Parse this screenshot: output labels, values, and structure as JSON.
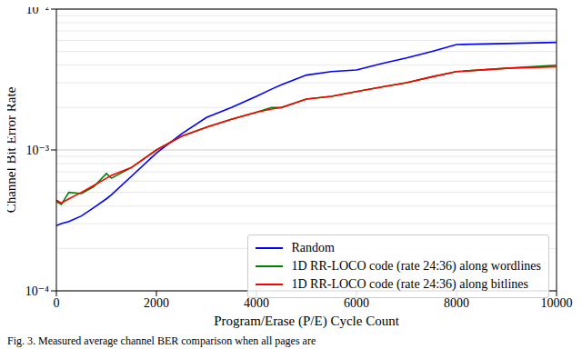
{
  "chart_data": {
    "type": "line",
    "xlabel": "Program/Erase (P/E) Cycle Count",
    "ylabel": "Channel Bit Error Rate",
    "annotations": [
      "Fig. 3.   Measured average channel BER comparison when all pages are"
    ],
    "log": "y",
    "grid": true,
    "legend": "lower right",
    "xlim": [
      0,
      10000
    ],
    "xticks": [
      0,
      2000,
      4000,
      6000,
      8000,
      10000
    ],
    "ylim": [
      0.0001,
      0.01
    ],
    "yticks": [
      {
        "value": 0.0001,
        "label": "10⁻⁴"
      },
      {
        "value": 0.001,
        "label": "10⁻³"
      },
      {
        "value": 0.01,
        "label": "10⁻²"
      }
    ],
    "x": [
      0,
      100,
      250,
      500,
      750,
      1000,
      1100,
      1500,
      2000,
      2500,
      3000,
      3500,
      4000,
      4300,
      4500,
      5000,
      5500,
      6000,
      6500,
      7000,
      7500,
      8000,
      9000,
      10000
    ],
    "series": [
      {
        "name": "Random",
        "color": "#0000ff",
        "values": [
          0.00029,
          0.0003,
          0.00031,
          0.00034,
          0.00039,
          0.00045,
          0.00048,
          0.00065,
          0.00095,
          0.0013,
          0.0017,
          0.002,
          0.0024,
          0.0027,
          0.0029,
          0.0034,
          0.0036,
          0.0037,
          0.0041,
          0.0045,
          0.005,
          0.0056,
          0.0057,
          0.0058
        ]
      },
      {
        "name": "1D RR-LOCO code (rate 24:36) along wordlines",
        "color": "#008000",
        "values": [
          0.00043,
          0.00041,
          0.0005,
          0.00049,
          0.00055,
          0.00068,
          0.00063,
          0.00075,
          0.001,
          0.00125,
          0.00145,
          0.00165,
          0.00185,
          0.002,
          0.002,
          0.0023,
          0.0024,
          0.0026,
          0.0028,
          0.003,
          0.0033,
          0.0036,
          0.0038,
          0.004
        ]
      },
      {
        "name": "1D RR-LOCO code (rate 24:36) along bitlines",
        "color": "#ff0000",
        "values": [
          0.00044,
          0.00042,
          0.00045,
          0.0005,
          0.00056,
          0.00063,
          0.00066,
          0.00075,
          0.001,
          0.00125,
          0.00145,
          0.00165,
          0.00185,
          0.00195,
          0.002,
          0.0023,
          0.0024,
          0.0026,
          0.0028,
          0.003,
          0.0033,
          0.0036,
          0.0038,
          0.0039
        ]
      }
    ]
  }
}
